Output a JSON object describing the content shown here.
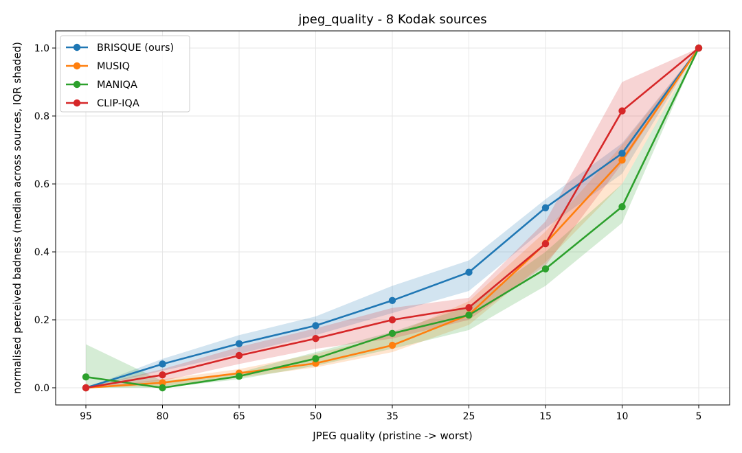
{
  "chart_data": {
    "type": "line",
    "title": "jpeg_quality - 8 Kodak sources",
    "xlabel": "JPEG quality  (pristine -> worst)",
    "ylabel": "normalised perceived badness  (median across sources, IQR shaded)",
    "categories": [
      "95",
      "80",
      "65",
      "50",
      "35",
      "25",
      "15",
      "10",
      "5"
    ],
    "ylim": [
      -0.05,
      1.05
    ],
    "yticks": [
      "0.0",
      "0.2",
      "0.4",
      "0.6",
      "0.8",
      "1.0"
    ],
    "grid": true,
    "legend_position": "top-left",
    "series": [
      {
        "name": "BRISQUE (ours)",
        "color": "#1f77b4",
        "values": [
          0.0,
          0.07,
          0.13,
          0.183,
          0.257,
          0.34,
          0.53,
          0.69,
          1.0
        ],
        "iqr_low": [
          0.0,
          0.05,
          0.1,
          0.155,
          0.22,
          0.285,
          0.47,
          0.63,
          1.0
        ],
        "iqr_high": [
          0.0,
          0.085,
          0.155,
          0.21,
          0.3,
          0.375,
          0.555,
          0.72,
          1.0
        ]
      },
      {
        "name": "MUSIQ",
        "color": "#ff7f0e",
        "values": [
          0.0,
          0.015,
          0.043,
          0.072,
          0.125,
          0.215,
          0.425,
          0.67,
          1.0
        ],
        "iqr_low": [
          0.0,
          0.005,
          0.03,
          0.06,
          0.105,
          0.185,
          0.37,
          0.6,
          1.0
        ],
        "iqr_high": [
          0.0,
          0.025,
          0.055,
          0.1,
          0.155,
          0.255,
          0.46,
          0.715,
          1.0
        ]
      },
      {
        "name": "MANIQA",
        "color": "#2ca02c",
        "values": [
          0.032,
          0.0,
          0.034,
          0.086,
          0.16,
          0.214,
          0.35,
          0.533,
          1.0
        ],
        "iqr_low": [
          0.0,
          0.0,
          0.025,
          0.065,
          0.115,
          0.17,
          0.3,
          0.485,
          1.0
        ],
        "iqr_high": [
          0.128,
          0.02,
          0.045,
          0.105,
          0.165,
          0.24,
          0.4,
          0.6,
          1.0
        ]
      },
      {
        "name": "CLIP-IQA",
        "color": "#d62728",
        "values": [
          0.0,
          0.038,
          0.095,
          0.145,
          0.2,
          0.236,
          0.424,
          0.815,
          1.0
        ],
        "iqr_low": [
          0.0,
          0.02,
          0.07,
          0.115,
          0.145,
          0.2,
          0.36,
          0.66,
          1.0
        ],
        "iqr_high": [
          0.0,
          0.055,
          0.12,
          0.175,
          0.235,
          0.265,
          0.49,
          0.9,
          1.0
        ]
      }
    ]
  }
}
